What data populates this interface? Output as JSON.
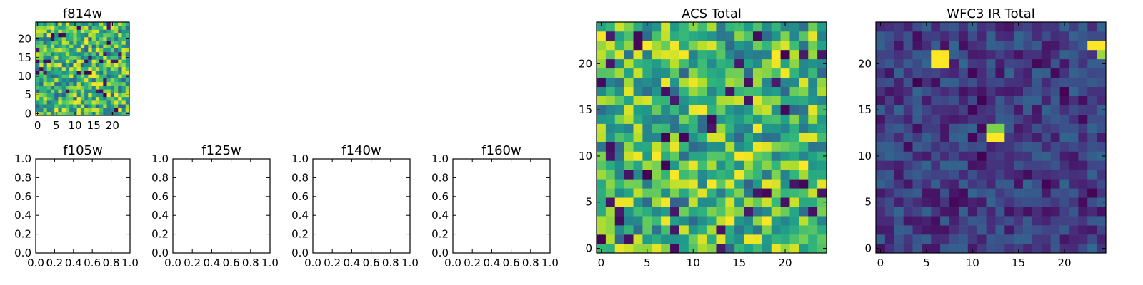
{
  "chart_data": [
    {
      "type": "heatmap",
      "title": "f814w",
      "grid_size": 25,
      "xlim": [
        -0.5,
        24.5
      ],
      "ylim": [
        -0.5,
        24.5
      ],
      "xticks": [
        0,
        5,
        10,
        15,
        20
      ],
      "yticks": [
        0,
        5,
        10,
        15,
        20
      ],
      "colormap": "viridis",
      "grid": false
    },
    {
      "type": "heatmap",
      "title": "f105w",
      "empty": true,
      "xlim": [
        0.0,
        1.0
      ],
      "ylim": [
        0.0,
        1.0
      ],
      "xticks": [
        "0.0",
        "0.2",
        "0.4",
        "0.6",
        "0.8",
        "1.0"
      ],
      "yticks": [
        "0.0",
        "0.2",
        "0.4",
        "0.6",
        "0.8",
        "1.0"
      ],
      "grid": false
    },
    {
      "type": "heatmap",
      "title": "f125w",
      "empty": true,
      "xlim": [
        0.0,
        1.0
      ],
      "ylim": [
        0.0,
        1.0
      ],
      "xticks": [
        "0.0",
        "0.2",
        "0.4",
        "0.6",
        "0.8",
        "1.0"
      ],
      "yticks": [
        "0.0",
        "0.2",
        "0.4",
        "0.6",
        "0.8",
        "1.0"
      ],
      "grid": false
    },
    {
      "type": "heatmap",
      "title": "f140w",
      "empty": true,
      "xlim": [
        0.0,
        1.0
      ],
      "ylim": [
        0.0,
        1.0
      ],
      "xticks": [
        "0.0",
        "0.2",
        "0.4",
        "0.6",
        "0.8",
        "1.0"
      ],
      "yticks": [
        "0.0",
        "0.2",
        "0.4",
        "0.6",
        "0.8",
        "1.0"
      ],
      "grid": false
    },
    {
      "type": "heatmap",
      "title": "f160w",
      "empty": true,
      "xlim": [
        0.0,
        1.0
      ],
      "ylim": [
        0.0,
        1.0
      ],
      "xticks": [
        "0.0",
        "0.2",
        "0.4",
        "0.6",
        "0.8",
        "1.0"
      ],
      "yticks": [
        "0.0",
        "0.2",
        "0.4",
        "0.6",
        "0.8",
        "1.0"
      ],
      "grid": false
    },
    {
      "type": "heatmap",
      "title": "ACS Total",
      "grid_size": 25,
      "xlim": [
        -0.5,
        24.5
      ],
      "ylim": [
        -0.5,
        24.5
      ],
      "xticks": [
        0,
        5,
        10,
        15,
        20
      ],
      "yticks": [
        0,
        5,
        10,
        15,
        20
      ],
      "colormap": "viridis",
      "grid": false
    },
    {
      "type": "heatmap",
      "title": "WFC3 IR Total",
      "grid_size": 25,
      "xlim": [
        -0.5,
        24.5
      ],
      "ylim": [
        -0.5,
        24.5
      ],
      "xticks": [
        0,
        5,
        10,
        15,
        20
      ],
      "yticks": [
        0,
        5,
        10,
        15,
        20
      ],
      "colormap": "viridis",
      "grid": false,
      "highlights": [
        {
          "x": 6,
          "y": 20,
          "value": 1.0
        },
        {
          "x": 7,
          "y": 20,
          "value": 1.0
        },
        {
          "x": 6,
          "y": 21,
          "value": 1.0
        },
        {
          "x": 7,
          "y": 21,
          "value": 1.0
        },
        {
          "x": 12,
          "y": 12,
          "value": 1.0
        },
        {
          "x": 13,
          "y": 12,
          "value": 1.0
        },
        {
          "x": 12,
          "y": 13,
          "value": 0.8
        },
        {
          "x": 13,
          "y": 13,
          "value": 0.8
        },
        {
          "x": 23,
          "y": 22,
          "value": 1.0
        },
        {
          "x": 24,
          "y": 22,
          "value": 1.0
        },
        {
          "x": 24,
          "y": 21,
          "value": 0.85
        }
      ]
    }
  ]
}
